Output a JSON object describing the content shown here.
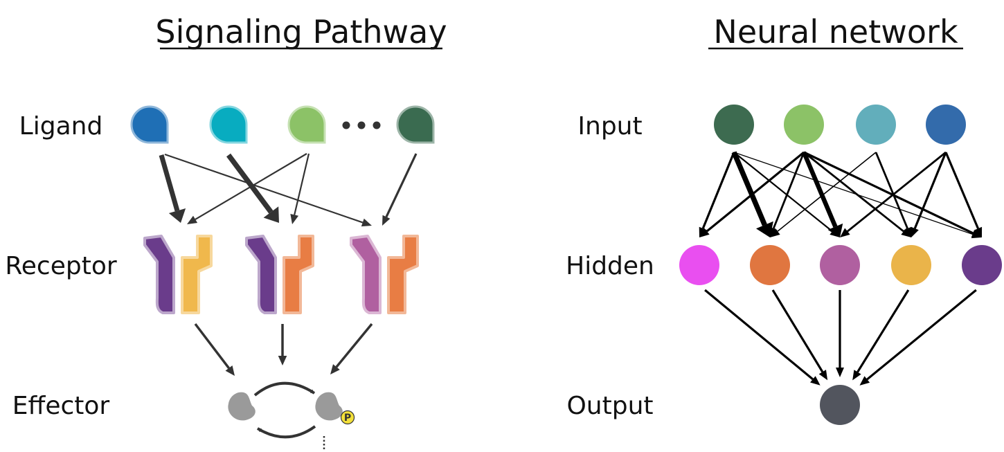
{
  "signaling": {
    "title": "Signaling Pathway",
    "labels": {
      "ligand": "Ligand",
      "receptor": "Receptor",
      "effector": "Effector"
    },
    "phospho_symbol": "P",
    "ligand_colors": [
      "#1f6fb5",
      "#08acc0",
      "#8cc267",
      "#3a6b50"
    ],
    "receptor_colors": [
      {
        "left": "#6a3c8b",
        "right": "#f0b84c"
      },
      {
        "left": "#6a3c8b",
        "right": "#e87d44"
      },
      {
        "left": "#b060a0",
        "right": "#e87d44"
      }
    ],
    "effector_color": "#9a9a9a",
    "phospho_color": "#f3e03a",
    "arrow_color": "#333333"
  },
  "neural": {
    "title": "Neural network",
    "labels": {
      "input": "Input",
      "hidden": "Hidden",
      "output": "Output"
    },
    "input_colors": [
      "#3d6b50",
      "#8cc267",
      "#62aebb",
      "#336bab"
    ],
    "hidden_colors": [
      "#e94ff0",
      "#e07640",
      "#b060a0",
      "#eab44a",
      "#6a3c8b"
    ],
    "output_color": "#52555e",
    "arrow_color": "#000000"
  }
}
